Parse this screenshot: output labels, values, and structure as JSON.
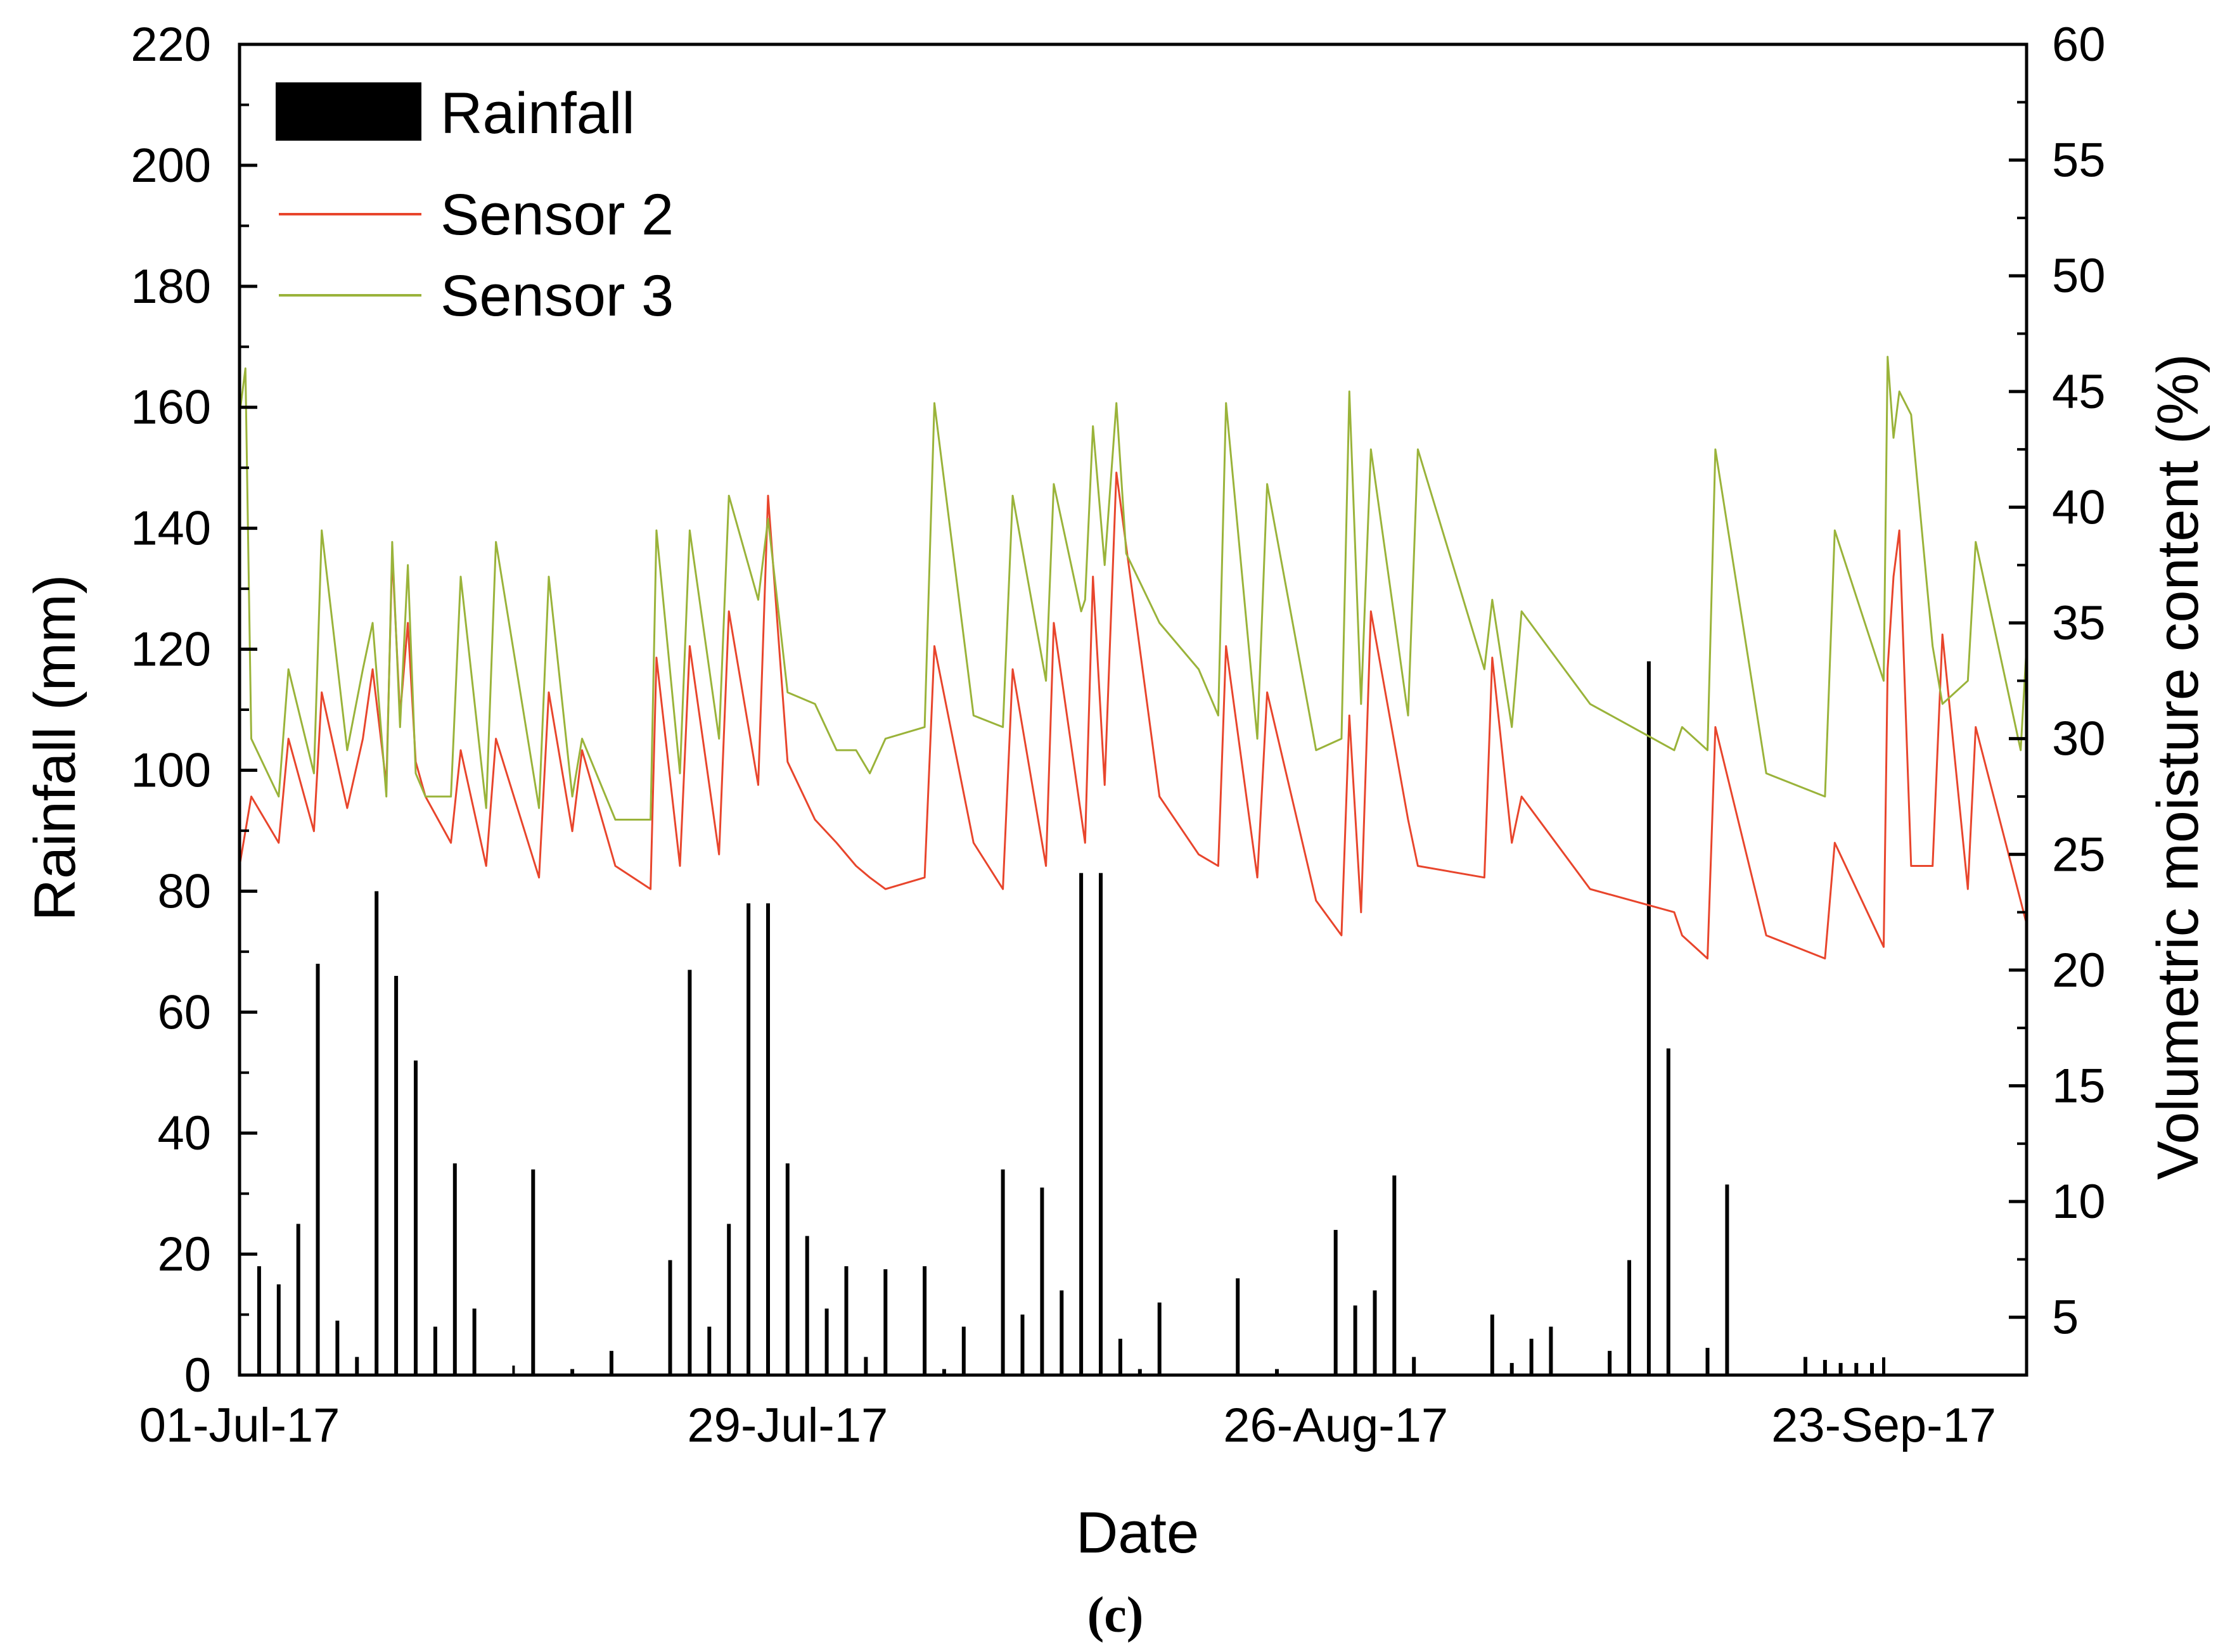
{
  "chart_data": {
    "type": "bar+line",
    "title": "",
    "xlabel": "Date",
    "ylabel_left": "Rainfall (mm)",
    "ylabel_right": "Volumetric moisture content (%)",
    "caption": "(c)",
    "x_range_days": [
      0,
      91.3
    ],
    "x_ticks": [
      {
        "day": 0,
        "label": "01-Jul-17"
      },
      {
        "day": 28,
        "label": "29-Jul-17"
      },
      {
        "day": 56,
        "label": "26-Aug-17"
      },
      {
        "day": 84,
        "label": "23-Sep-17"
      }
    ],
    "ylim_left": [
      0,
      220
    ],
    "yticks_left": [
      0,
      20,
      40,
      60,
      80,
      100,
      120,
      140,
      160,
      180,
      200,
      220
    ],
    "ylim_right": [
      2.5,
      60
    ],
    "yticks_right": [
      5,
      10,
      15,
      20,
      25,
      30,
      35,
      40,
      45,
      50,
      55,
      60
    ],
    "legend": {
      "position": "top-left",
      "entries": [
        {
          "label": "Rainfall",
          "kind": "bar",
          "color": "#000000"
        },
        {
          "label": "Sensor 2",
          "kind": "line",
          "color": "#e8452c"
        },
        {
          "label": "Sensor 3",
          "kind": "line",
          "color": "#9ab33a"
        }
      ]
    },
    "rainfall": {
      "name": "Rainfall",
      "color": "#000000",
      "days": [
        1,
        2,
        3,
        4,
        5,
        6,
        7,
        8,
        9,
        10,
        11,
        12,
        15,
        17,
        19,
        22,
        23,
        24,
        25,
        26,
        27,
        28,
        29,
        30,
        31,
        32,
        33,
        35,
        36,
        37,
        39,
        40,
        41,
        42,
        43,
        44,
        45,
        46,
        47,
        51,
        53,
        56,
        57,
        58,
        59,
        60,
        64,
        65,
        66,
        67,
        70,
        71,
        72,
        73,
        75,
        76,
        80,
        81,
        81.8,
        82.6,
        83.4
      ],
      "values": [
        18,
        15,
        25,
        68,
        9,
        3,
        80,
        66,
        52,
        8,
        35,
        11,
        34,
        1,
        4,
        19,
        67,
        8,
        25,
        78,
        78,
        35,
        23,
        11,
        18,
        3,
        17.5,
        18,
        1,
        8,
        34,
        10,
        31,
        14,
        83,
        83,
        6,
        1,
        12,
        16,
        1,
        24,
        11.5,
        14,
        33,
        3,
        10,
        2,
        6,
        8,
        4,
        19,
        118,
        54,
        4.5,
        31.5,
        3,
        2.5,
        2,
        2,
        2
      ]
    },
    "series": [
      {
        "name": "Sensor 2",
        "color": "#e8452c",
        "axis": "right",
        "x_days": [
          0,
          0.6,
          2.0,
          2.5,
          3.8,
          4.2,
          5.5,
          6.3,
          6.8,
          7.5,
          7.8,
          8.2,
          8.6,
          9.0,
          9.5,
          10.8,
          11.3,
          12.6,
          13.1,
          15.3,
          15.8,
          17.0,
          17.5,
          19.2,
          21.0,
          21.3,
          22.5,
          23.0,
          24.5,
          25.0,
          26.5,
          27.0,
          28.0,
          29.4,
          30.5,
          31.5,
          32.2,
          33.0,
          35.0,
          35.5,
          37.5,
          39.0,
          39.5,
          41.2,
          41.6,
          43.2,
          43.6,
          44.2,
          44.8,
          47.0,
          49.0,
          50.0,
          50.4,
          52.0,
          52.5,
          55.0,
          56.3,
          56.7,
          57.3,
          57.8,
          59.7,
          60.2,
          63.6,
          64.0,
          65.0,
          65.5,
          69.0,
          73.3,
          73.7,
          75.0,
          75.4,
          78.0,
          81.0,
          81.5,
          84.0,
          84.2,
          84.5,
          84.8,
          85.4,
          86.5,
          87.0,
          88.3,
          88.7,
          91.3
        ],
        "values": [
          24.5,
          27.5,
          25.5,
          30,
          26,
          32,
          27,
          30,
          33,
          28,
          38,
          31,
          35,
          29,
          27.5,
          25.5,
          29.5,
          24.5,
          30,
          24.0,
          32,
          26.0,
          29.5,
          24.5,
          23.5,
          33.5,
          24.5,
          34,
          25.0,
          35.5,
          28,
          40.5,
          29,
          26.5,
          25.5,
          24.5,
          24.0,
          23.5,
          24.0,
          34,
          25.5,
          23.5,
          33,
          24.5,
          35,
          25.5,
          37,
          28,
          41.5,
          27.5,
          25.0,
          24.5,
          34,
          24.0,
          32,
          23.0,
          21.5,
          31,
          22.5,
          35.5,
          26.5,
          24.5,
          24.0,
          33.5,
          25.5,
          27.5,
          23.5,
          22.5,
          21.5,
          20.5,
          30.5,
          21.5,
          20.5,
          25.5,
          21.0,
          33,
          37,
          39,
          24.5,
          24.5,
          34.5,
          23.5,
          30.5,
          22.0
        ]
      },
      {
        "name": "Sensor 3",
        "color": "#9ab33a",
        "axis": "right",
        "x_days": [
          0,
          0.3,
          0.6,
          2.0,
          2.5,
          3.8,
          4.2,
          5.5,
          6.3,
          6.8,
          7.5,
          7.8,
          8.2,
          8.6,
          9.0,
          9.5,
          10.8,
          11.3,
          12.6,
          13.1,
          15.3,
          15.8,
          17.0,
          17.5,
          19.2,
          21.0,
          21.3,
          22.5,
          23.0,
          24.5,
          25.0,
          26.5,
          27.0,
          28.0,
          29.4,
          30.5,
          31.5,
          32.2,
          33.0,
          35.0,
          35.5,
          37.5,
          39.0,
          39.5,
          41.2,
          41.6,
          43.0,
          43.2,
          43.6,
          44.2,
          44.8,
          45.3,
          47.0,
          49.0,
          50.0,
          50.4,
          52.0,
          52.5,
          55.0,
          56.3,
          56.7,
          57.3,
          57.8,
          59.7,
          60.2,
          63.6,
          64.0,
          65.0,
          65.5,
          69.0,
          73.3,
          73.7,
          75.0,
          75.4,
          78.0,
          81.0,
          81.5,
          84.0,
          84.2,
          84.5,
          84.8,
          85.4,
          86.5,
          87.0,
          88.3,
          88.7,
          91.0,
          91.3
        ],
        "values": [
          44,
          46,
          30,
          27.5,
          33,
          28.5,
          39,
          29.5,
          33,
          35,
          27.5,
          38.5,
          30.5,
          37.5,
          28.5,
          27.5,
          27.5,
          37,
          27,
          38.5,
          27,
          37,
          27.5,
          30,
          26.5,
          26.5,
          39,
          28.5,
          39,
          30,
          40.5,
          36,
          39.5,
          32,
          31.5,
          29.5,
          29.5,
          28.5,
          30,
          30.5,
          44.5,
          31,
          30.5,
          40.5,
          32.5,
          41,
          35.5,
          36,
          43.5,
          37.5,
          44.5,
          38,
          35,
          33,
          31,
          44.5,
          30,
          41,
          29.5,
          30,
          45,
          31.5,
          42.5,
          31,
          42.5,
          33,
          36,
          30.5,
          35.5,
          31.5,
          29.5,
          30.5,
          29.5,
          42.5,
          28.5,
          27.5,
          39,
          32.5,
          46.5,
          43,
          45,
          44,
          34,
          31.5,
          32.5,
          38.5,
          29.5,
          34
        ]
      }
    ]
  }
}
